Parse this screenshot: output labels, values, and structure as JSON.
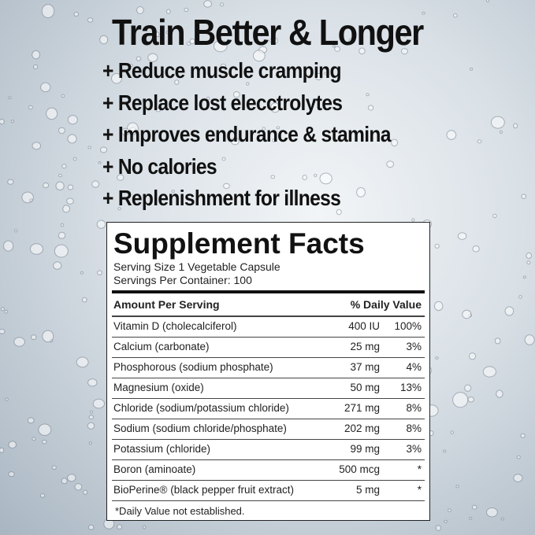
{
  "header": {
    "title": "Train Better & Longer"
  },
  "benefits": [
    "+ Reduce muscle cramping",
    "+ Replace lost elecctrolytes",
    "+ Improves endurance & stamina",
    "+ No calories",
    "+ Replenishment for illness"
  ],
  "facts": {
    "title": "Supplement Facts",
    "serving_size": "Serving Size 1 Vegetable Capsule",
    "servings_per_container": "Servings Per Container: 100",
    "column_headers": [
      "Amount Per Serving",
      "% Daily Value"
    ],
    "rows": [
      [
        "Vitamin D (cholecalciferol)",
        "400 IU",
        "100%"
      ],
      [
        "Calcium (carbonate)",
        "25 mg",
        "3%"
      ],
      [
        "Phosphorous (sodium phosphate)",
        "37 mg",
        "4%"
      ],
      [
        "Magnesium (oxide)",
        "50 mg",
        "13%"
      ],
      [
        "Chloride (sodium/potassium chloride)",
        "271 mg",
        "8%"
      ],
      [
        "Sodium (sodium chloride/phosphate)",
        "202 mg",
        "8%"
      ],
      [
        "Potassium (chloride)",
        "99 mg",
        "3%"
      ],
      [
        "Boron (aminoate)",
        "500 mcg",
        "*"
      ],
      [
        "BioPerine® (black pepper fruit extract)",
        "5 mg",
        "*"
      ]
    ],
    "footnote": "*Daily Value not established."
  }
}
